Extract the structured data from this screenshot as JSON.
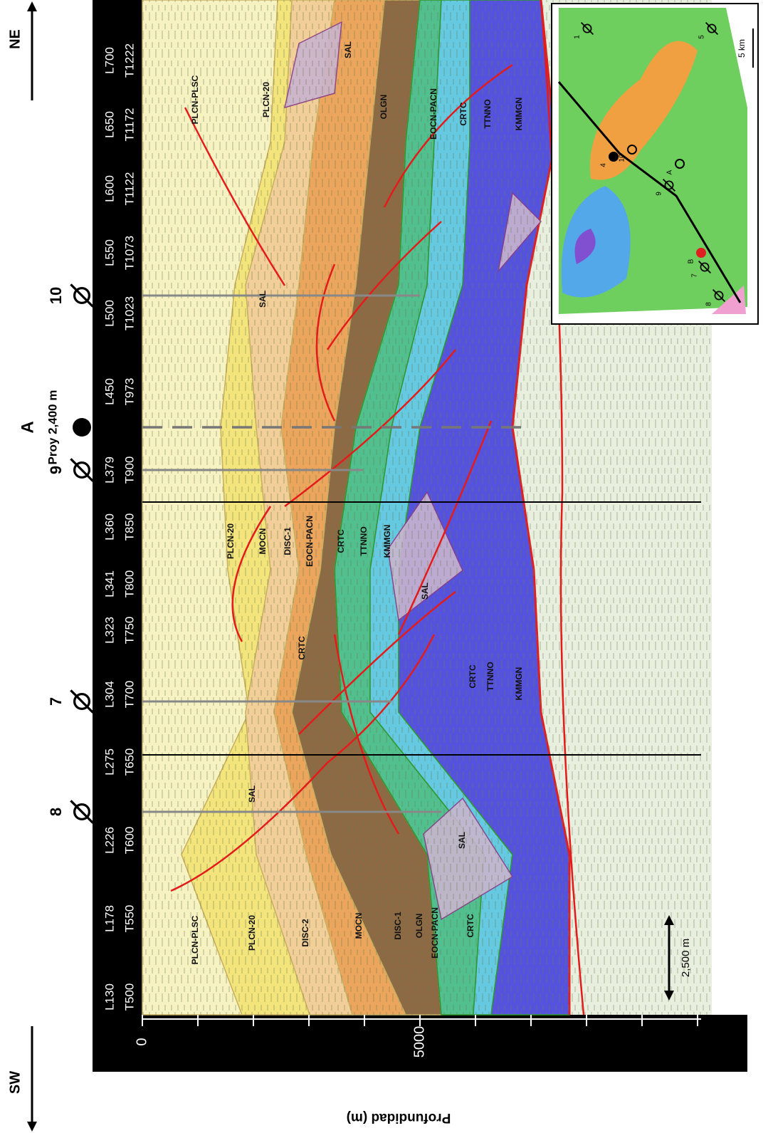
{
  "directions": {
    "sw": "SW",
    "ne": "NE"
  },
  "sections": [
    {
      "line": "L130",
      "trace": "T500"
    },
    {
      "line": "L178",
      "trace": "T550"
    },
    {
      "line": "L226",
      "trace": "T600"
    },
    {
      "line": "L275",
      "trace": "T650"
    },
    {
      "line": "L304",
      "trace": "T700"
    },
    {
      "line": "L323",
      "trace": "T750"
    },
    {
      "line": "L341",
      "trace": "T800"
    },
    {
      "line": "L360",
      "trace": "T850"
    },
    {
      "line": "L379",
      "trace": "T900"
    },
    {
      "line": "L450",
      "trace": "T973"
    },
    {
      "line": "L500",
      "trace": "T1023"
    },
    {
      "line": "L550",
      "trace": "T1073"
    },
    {
      "line": "L600",
      "trace": "T1122"
    },
    {
      "line": "L650",
      "trace": "T1172"
    },
    {
      "line": "L700",
      "trace": "T1222"
    }
  ],
  "wells": [
    "8",
    "7",
    "9",
    "10"
  ],
  "projected_well": {
    "label": "A",
    "note": "Proy 2,400 m"
  },
  "layer_labels": [
    "PLCN-PLSC",
    "PLCN-20",
    "DISC-2",
    "MOCN",
    "DISC-1",
    "OLGN",
    "EOCN-PACN",
    "CRTC",
    "SAL",
    "SAL",
    "CRTC",
    "PLCN-20",
    "MOCN",
    "DISC-1",
    "EOCN-PACN",
    "CRTC",
    "TTNNO",
    "KMMGN",
    "SAL",
    "CRTC",
    "TTNNO",
    "KMMGN",
    "SAL",
    "PLCN-PLSC",
    "PLCN-20",
    "SAL",
    "OLGN",
    "EOCN-PACN",
    "CRTC",
    "TTNNO",
    "KMMGN"
  ],
  "depth_axis": {
    "title": "Profundidad (m)",
    "ticks": [
      "0",
      "5000"
    ]
  },
  "scale_bar": "2,500 m",
  "inset": {
    "scale": "5 km",
    "wells": [
      "1",
      "5",
      "4",
      "10",
      "A",
      "9",
      "B",
      "7",
      "8"
    ]
  }
}
